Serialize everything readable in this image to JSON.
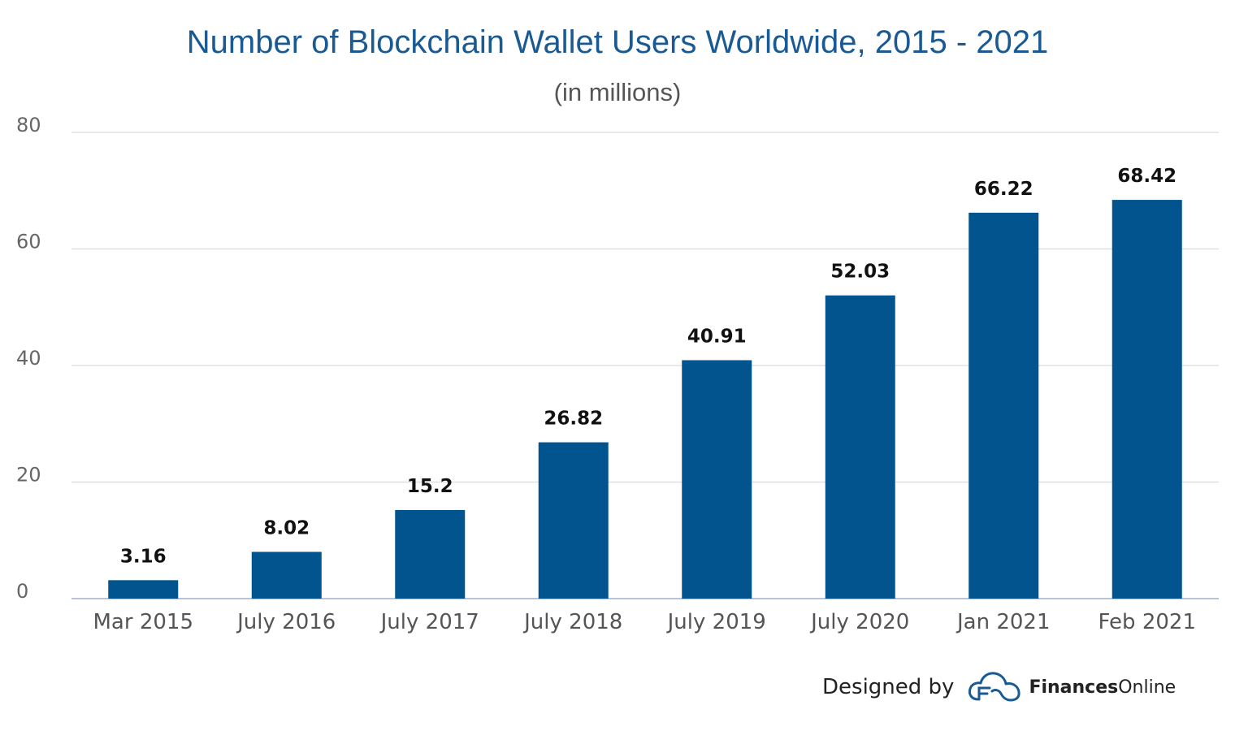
{
  "chart_data": {
    "type": "bar",
    "title": "Number of Blockchain Wallet Users Worldwide, 2015 - 2021",
    "subtitle": "(in millions)",
    "categories": [
      "Mar 2015",
      "July 2016",
      "July 2017",
      "July 2018",
      "July 2019",
      "July 2020",
      "Jan 2021",
      "Feb 2021"
    ],
    "values": [
      3.16,
      8.02,
      15.2,
      26.82,
      40.91,
      52.03,
      66.22,
      68.42
    ],
    "data_labels": [
      "3.16",
      "8.02",
      "15.2",
      "26.82",
      "40.91",
      "52.03",
      "66.22",
      "68.42"
    ],
    "y_ticks": [
      0,
      20,
      40,
      60,
      80
    ],
    "ylim": [
      0,
      80
    ],
    "grid": true,
    "legend": "none",
    "bar_color": "#02548f"
  },
  "credit": {
    "label": "Designed by",
    "brand_bold": "Finances",
    "brand_regular": "Online",
    "logo_icon": "cloud-f-icon",
    "logo_color": "#1a5a94"
  }
}
